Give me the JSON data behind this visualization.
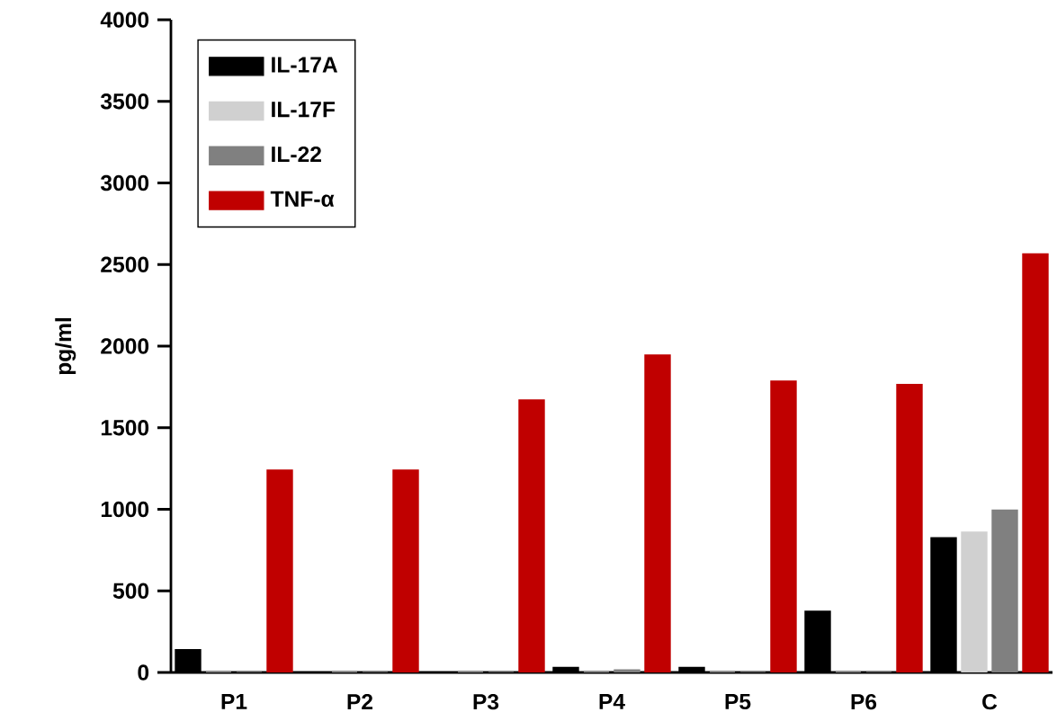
{
  "chart_data": {
    "type": "bar",
    "ylabel": "pg/ml",
    "categories": [
      "P1",
      "P2",
      "P3",
      "P4",
      "P5",
      "P6",
      "C"
    ],
    "series": [
      {
        "name": "IL-17A",
        "color": "#000000",
        "values": [
          140,
          0,
          0,
          30,
          30,
          375,
          825
        ]
      },
      {
        "name": "IL-17F",
        "color": "#d0d0d0",
        "values": [
          0,
          0,
          0,
          0,
          0,
          0,
          860
        ]
      },
      {
        "name": "IL-22",
        "color": "#808080",
        "values": [
          0,
          0,
          0,
          15,
          0,
          0,
          995
        ]
      },
      {
        "name": "TNF-α",
        "color": "#c00000",
        "values": [
          1240,
          1240,
          1670,
          1945,
          1785,
          1765,
          2565
        ]
      }
    ],
    "ylim": [
      0,
      4000
    ],
    "yticks": [
      0,
      500,
      1000,
      1500,
      2000,
      2500,
      3000,
      3500,
      4000
    ],
    "grid": false,
    "legend": "top left"
  }
}
